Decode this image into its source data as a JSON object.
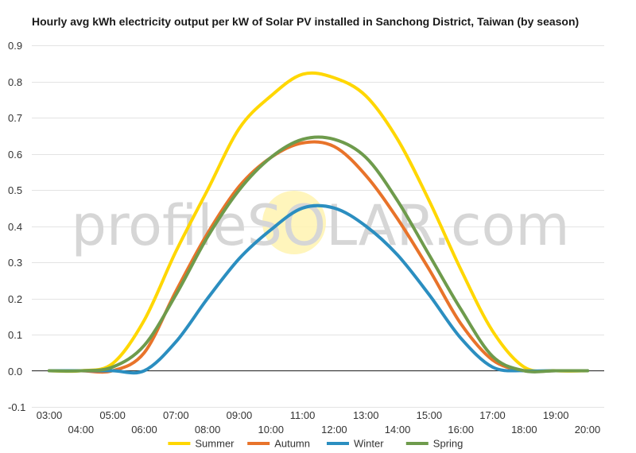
{
  "chart_data": {
    "type": "line",
    "title": "Hourly avg kWh electricity output per kW of Solar PV installed in Sanchong District, Taiwan (by season)",
    "xlabel": "",
    "ylabel": "",
    "ylim": [
      -0.1,
      0.9
    ],
    "yticks": [
      "-0.1",
      "0.0",
      "0.1",
      "0.2",
      "0.3",
      "0.4",
      "0.5",
      "0.6",
      "0.7",
      "0.8",
      "0.9"
    ],
    "categories": [
      "03:00",
      "04:00",
      "05:00",
      "06:00",
      "07:00",
      "08:00",
      "09:00",
      "10:00",
      "11:00",
      "12:00",
      "13:00",
      "14:00",
      "15:00",
      "16:00",
      "17:00",
      "18:00",
      "19:00",
      "20:00"
    ],
    "grid": true,
    "legend": "bottom",
    "series": [
      {
        "name": "Summer",
        "color": "#FFD700",
        "values": [
          0,
          0,
          0.02,
          0.14,
          0.33,
          0.5,
          0.67,
          0.76,
          0.82,
          0.81,
          0.76,
          0.64,
          0.47,
          0.28,
          0.11,
          0.01,
          0,
          0
        ]
      },
      {
        "name": "Autumn",
        "color": "#E8732A",
        "values": [
          0,
          0,
          0,
          0.05,
          0.22,
          0.38,
          0.51,
          0.59,
          0.63,
          0.62,
          0.54,
          0.42,
          0.28,
          0.13,
          0.03,
          0,
          0,
          0
        ]
      },
      {
        "name": "Winter",
        "color": "#2B8EC0",
        "values": [
          0,
          0,
          0,
          0,
          0.08,
          0.2,
          0.31,
          0.39,
          0.45,
          0.45,
          0.4,
          0.32,
          0.21,
          0.09,
          0.01,
          0,
          0,
          0
        ]
      },
      {
        "name": "Spring",
        "color": "#6E9B4C",
        "values": [
          0,
          0,
          0.01,
          0.07,
          0.21,
          0.37,
          0.5,
          0.59,
          0.64,
          0.64,
          0.59,
          0.47,
          0.32,
          0.17,
          0.04,
          0,
          0,
          0
        ]
      }
    ]
  },
  "watermark": {
    "text": "profileSOLAR.com"
  }
}
